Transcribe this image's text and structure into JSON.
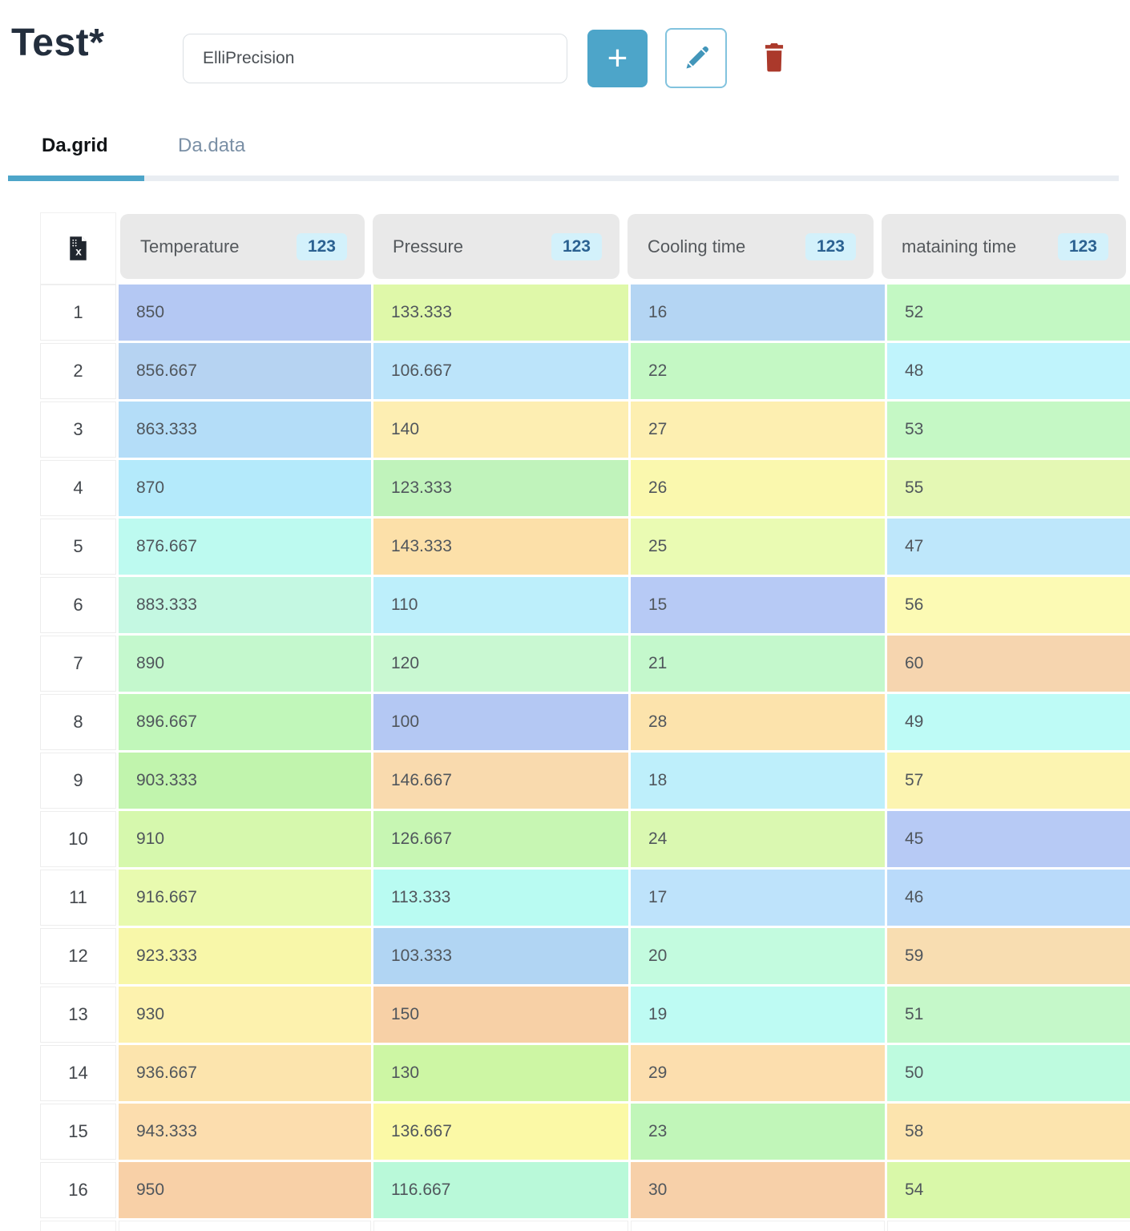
{
  "header": {
    "title": "Test*",
    "name_input": {
      "value": "ElliPrecision",
      "placeholder": ""
    },
    "add_button_label": "+"
  },
  "tabs": [
    {
      "label": "Da.grid",
      "active": true
    },
    {
      "label": "Da.data",
      "active": false
    }
  ],
  "colors": {
    "accent": "#4da5c9",
    "danger": "#ab392b",
    "badge_bg": "#d3f1fb",
    "badge_text": "#2b6191",
    "header_cell_bg": "#e9e9e9",
    "tab_inactive_text": "#7b90a6",
    "tab_track": "#e9edf2"
  },
  "table": {
    "corner_icon": "excel-export-icon",
    "columns": [
      {
        "label": "Temperature",
        "type_badge": "123"
      },
      {
        "label": "Pressure",
        "type_badge": "123"
      },
      {
        "label": "Cooling time",
        "type_badge": "123"
      },
      {
        "label": "mataining time",
        "type_badge": "123"
      }
    ],
    "rows": [
      {
        "n": "1",
        "cells": [
          {
            "v": "850",
            "c": "#b4c8f3"
          },
          {
            "v": "133.333",
            "c": "#dff8a9"
          },
          {
            "v": "16",
            "c": "#b4d5f3"
          },
          {
            "v": "52",
            "c": "#c3f8c3"
          }
        ]
      },
      {
        "n": "2",
        "cells": [
          {
            "v": "856.667",
            "c": "#b6d3f2"
          },
          {
            "v": "106.667",
            "c": "#bce4fa"
          },
          {
            "v": "22",
            "c": "#c4f8c4"
          },
          {
            "v": "48",
            "c": "#c0f4fc"
          }
        ]
      },
      {
        "n": "3",
        "cells": [
          {
            "v": "863.333",
            "c": "#b4ddf8"
          },
          {
            "v": "140",
            "c": "#fdeeb2"
          },
          {
            "v": "27",
            "c": "#fdefb1"
          },
          {
            "v": "53",
            "c": "#c5f8c5"
          }
        ]
      },
      {
        "n": "4",
        "cells": [
          {
            "v": "870",
            "c": "#b4eafb"
          },
          {
            "v": "123.333",
            "c": "#c0f3bb"
          },
          {
            "v": "26",
            "c": "#faf8ae"
          },
          {
            "v": "55",
            "c": "#e4f8b4"
          }
        ]
      },
      {
        "n": "5",
        "cells": [
          {
            "v": "876.667",
            "c": "#bdfaf0"
          },
          {
            "v": "143.333",
            "c": "#fce0a9"
          },
          {
            "v": "25",
            "c": "#eafbb3"
          },
          {
            "v": "47",
            "c": "#bee7fb"
          }
        ]
      },
      {
        "n": "6",
        "cells": [
          {
            "v": "883.333",
            "c": "#c4f8e2"
          },
          {
            "v": "110",
            "c": "#bdeffb"
          },
          {
            "v": "15",
            "c": "#b7caf5"
          },
          {
            "v": "56",
            "c": "#fcfab4"
          }
        ]
      },
      {
        "n": "7",
        "cells": [
          {
            "v": "890",
            "c": "#c4f8cd"
          },
          {
            "v": "120",
            "c": "#c9f8d2"
          },
          {
            "v": "21",
            "c": "#c4f8cc"
          },
          {
            "v": "60",
            "c": "#f6d5af"
          }
        ]
      },
      {
        "n": "8",
        "cells": [
          {
            "v": "896.667",
            "c": "#c1f7ba"
          },
          {
            "v": "100",
            "c": "#b4c8f3"
          },
          {
            "v": "28",
            "c": "#fce3ac"
          },
          {
            "v": "49",
            "c": "#befbf6"
          }
        ]
      },
      {
        "n": "9",
        "cells": [
          {
            "v": "903.333",
            "c": "#c1f4ad"
          },
          {
            "v": "146.667",
            "c": "#f9daae"
          },
          {
            "v": "18",
            "c": "#beeffb"
          },
          {
            "v": "57",
            "c": "#fcf4b1"
          }
        ]
      },
      {
        "n": "10",
        "cells": [
          {
            "v": "910",
            "c": "#d6f8ad"
          },
          {
            "v": "126.667",
            "c": "#c7f6b3"
          },
          {
            "v": "24",
            "c": "#daf8b1"
          },
          {
            "v": "45",
            "c": "#b7caf5"
          }
        ]
      },
      {
        "n": "11",
        "cells": [
          {
            "v": "916.667",
            "c": "#e8faaf"
          },
          {
            "v": "113.333",
            "c": "#b9fbf2"
          },
          {
            "v": "17",
            "c": "#bee3fb"
          },
          {
            "v": "46",
            "c": "#b9dafa"
          }
        ]
      },
      {
        "n": "12",
        "cells": [
          {
            "v": "923.333",
            "c": "#f8f7a9"
          },
          {
            "v": "103.333",
            "c": "#b1d5f3"
          },
          {
            "v": "20",
            "c": "#c3fbdf"
          },
          {
            "v": "59",
            "c": "#f8ddb1"
          }
        ]
      },
      {
        "n": "13",
        "cells": [
          {
            "v": "930",
            "c": "#fdf2ae"
          },
          {
            "v": "150",
            "c": "#f7d0a6"
          },
          {
            "v": "19",
            "c": "#befbf3"
          },
          {
            "v": "51",
            "c": "#c5f8c9"
          }
        ]
      },
      {
        "n": "14",
        "cells": [
          {
            "v": "936.667",
            "c": "#fce4ad"
          },
          {
            "v": "130",
            "c": "#cdf6a4"
          },
          {
            "v": "29",
            "c": "#fcdeae"
          },
          {
            "v": "50",
            "c": "#befbdf"
          }
        ]
      },
      {
        "n": "15",
        "cells": [
          {
            "v": "943.333",
            "c": "#fcddae"
          },
          {
            "v": "136.667",
            "c": "#fbf9a6"
          },
          {
            "v": "23",
            "c": "#c1f6b9"
          },
          {
            "v": "58",
            "c": "#fce4ae"
          }
        ]
      },
      {
        "n": "16",
        "cells": [
          {
            "v": "950",
            "c": "#f8d0a7"
          },
          {
            "v": "116.667",
            "c": "#b9f9d9"
          },
          {
            "v": "30",
            "c": "#f7d0a9"
          },
          {
            "v": "54",
            "c": "#d9f8a9"
          }
        ]
      }
    ]
  }
}
